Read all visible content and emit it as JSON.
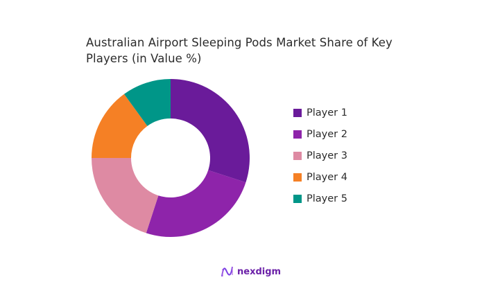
{
  "title": "Australian Airport Sleeping Pods Market Share of Key Players (in Value %)",
  "chart_data": {
    "type": "pie",
    "variant": "donut",
    "title": "Australian Airport Sleeping Pods Market Share of Key Players (in Value %)",
    "categories": [
      "Player 1",
      "Player 2",
      "Player 3",
      "Player 4",
      "Player 5"
    ],
    "values": [
      30,
      25,
      20,
      15,
      10
    ],
    "colors": [
      "#6a1b9a",
      "#8e24aa",
      "#de8aa3",
      "#f58025",
      "#009688"
    ],
    "legend_position": "right"
  },
  "legend": [
    {
      "label": "Player 1",
      "color": "#6a1b9a"
    },
    {
      "label": "Player 2",
      "color": "#8e24aa"
    },
    {
      "label": "Player 3",
      "color": "#de8aa3"
    },
    {
      "label": "Player 4",
      "color": "#f58025"
    },
    {
      "label": "Player 5",
      "color": "#009688"
    }
  ],
  "brand": {
    "name": "nexdigm",
    "icon": "nexdigm-logo-icon"
  }
}
